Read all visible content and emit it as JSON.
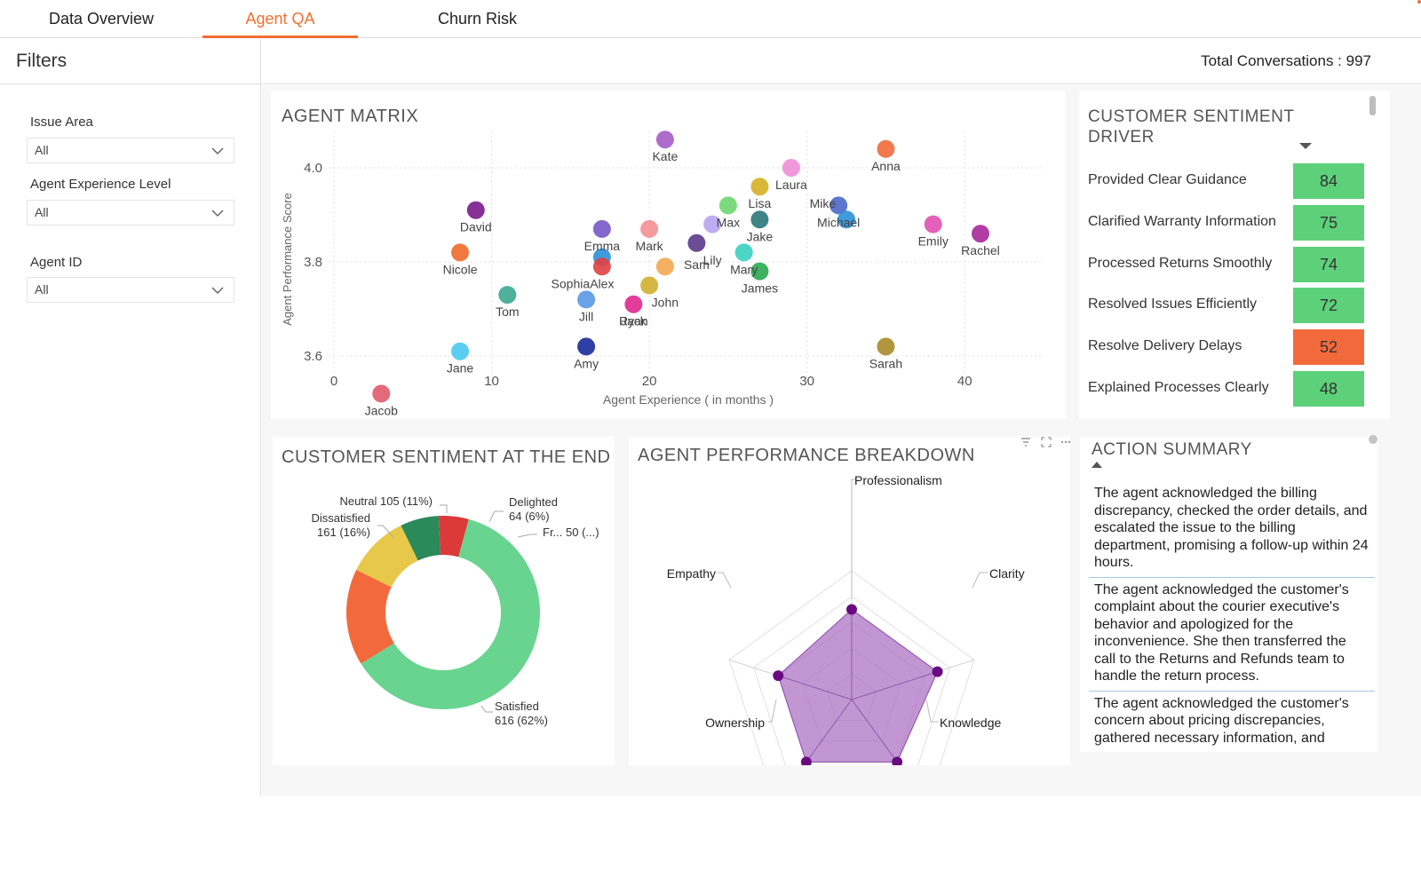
{
  "tabs": [
    {
      "label": "Data Overview",
      "active": false
    },
    {
      "label": "Agent QA",
      "active": true
    },
    {
      "label": "Churn Risk",
      "active": false
    }
  ],
  "accent_color": "#f07030",
  "sidebar": {
    "title": "Filters",
    "filters": [
      {
        "label": "Issue Area",
        "value": "All"
      },
      {
        "label": "Agent Experience Level",
        "value": "All"
      },
      {
        "label": "Agent ID",
        "value": "All"
      }
    ]
  },
  "header": {
    "total_conversations": "Total Conversations : 997"
  },
  "agent_matrix": {
    "title": "AGENT MATRIX",
    "chart_data": {
      "type": "scatter",
      "xlabel": "Agent Experience ( in months )",
      "ylabel": "Agent Performance Score",
      "xlim": [
        0,
        45
      ],
      "ylim": [
        3.5,
        4.1
      ],
      "xticks": [
        0,
        10,
        20,
        30,
        40
      ],
      "yticks": [
        3.6,
        3.8,
        4.0
      ],
      "grid": true,
      "points": [
        {
          "name": "Kate",
          "x": 21,
          "y": 4.06,
          "color": "#a45cc7"
        },
        {
          "name": "Anna",
          "x": 35,
          "y": 4.04,
          "color": "#f06a3a"
        },
        {
          "name": "Laura",
          "x": 29,
          "y": 4.0,
          "color": "#f08cd8"
        },
        {
          "name": "Mike",
          "x": 27,
          "y": 3.96,
          "color": "#d4b020"
        },
        {
          "name": "Lisa",
          "x": 25,
          "y": 3.92,
          "color": "#6ed66e"
        },
        {
          "name": "Michael",
          "x": 32,
          "y": 3.92,
          "color": "#4a68c8"
        },
        {
          "name": "Michael",
          "x": 32.5,
          "y": 3.89,
          "color": "#2a90d8"
        },
        {
          "name": "Max",
          "x": 24,
          "y": 3.88,
          "color": "#b8a4f0"
        },
        {
          "name": "Jake",
          "x": 27,
          "y": 3.89,
          "color": "#2a7878"
        },
        {
          "name": "David",
          "x": 9,
          "y": 3.91,
          "color": "#7a1a8a"
        },
        {
          "name": "Emily",
          "x": 38,
          "y": 3.88,
          "color": "#e050b0"
        },
        {
          "name": "Rachel",
          "x": 41,
          "y": 3.86,
          "color": "#a8289a"
        },
        {
          "name": "Emma",
          "x": 17,
          "y": 3.87,
          "color": "#7858c8"
        },
        {
          "name": "Mark",
          "x": 20,
          "y": 3.87,
          "color": "#f49090"
        },
        {
          "name": "Lily",
          "x": 23,
          "y": 3.84,
          "color": "#5a3a8a"
        },
        {
          "name": "Mary",
          "x": 26,
          "y": 3.82,
          "color": "#3ad0c0"
        },
        {
          "name": "Nicole",
          "x": 8,
          "y": 3.82,
          "color": "#f06a2a"
        },
        {
          "name": "Emma",
          "x": 17,
          "y": 3.81,
          "color": "#2a90d8"
        },
        {
          "name": "Alex",
          "x": 17,
          "y": 3.79,
          "color": "#e04040"
        },
        {
          "name": "Sam",
          "x": 21,
          "y": 3.79,
          "color": "#f4a850"
        },
        {
          "name": "James",
          "x": 27,
          "y": 3.78,
          "color": "#2aa850"
        },
        {
          "name": "John",
          "x": 20,
          "y": 3.75,
          "color": "#d0b030"
        },
        {
          "name": "Tom",
          "x": 11,
          "y": 3.73,
          "color": "#3aa890"
        },
        {
          "name": "Sophia",
          "x": 16,
          "y": 3.72,
          "color": "#5a98e8"
        },
        {
          "name": "Jack",
          "x": 19,
          "y": 3.71,
          "color": "#e02890"
        },
        {
          "name": "Amy",
          "x": 16,
          "y": 3.62,
          "color": "#1a2a9a"
        },
        {
          "name": "Sarah",
          "x": 35,
          "y": 3.62,
          "color": "#a88a2a"
        },
        {
          "name": "Jane",
          "x": 8,
          "y": 3.61,
          "color": "#48c8f0"
        },
        {
          "name": "Jacob",
          "x": 3,
          "y": 3.52,
          "color": "#e05a6a"
        }
      ],
      "labels": [
        {
          "text": "Kate",
          "x": 21,
          "y": 4.06
        },
        {
          "text": "Anna",
          "x": 35,
          "y": 4.04
        },
        {
          "text": "Laura",
          "x": 29,
          "y": 4.0
        },
        {
          "text": "Mike",
          "x": 31,
          "y": 3.96
        },
        {
          "text": "Lisa",
          "x": 27,
          "y": 3.96
        },
        {
          "text": "Max",
          "x": 25,
          "y": 3.92
        },
        {
          "text": "Jake",
          "x": 27,
          "y": 3.89
        },
        {
          "text": "Michael",
          "x": 32,
          "y": 3.92
        },
        {
          "text": "David",
          "x": 9,
          "y": 3.91
        },
        {
          "text": "Emily",
          "x": 38,
          "y": 3.88
        },
        {
          "text": "Rachel",
          "x": 41,
          "y": 3.86
        },
        {
          "text": "Emma",
          "x": 17,
          "y": 3.87
        },
        {
          "text": "Mark",
          "x": 20,
          "y": 3.87
        },
        {
          "text": "Lily",
          "x": 24,
          "y": 3.84
        },
        {
          "text": "Sam",
          "x": 23,
          "y": 3.83
        },
        {
          "text": "Mary",
          "x": 26,
          "y": 3.82
        },
        {
          "text": "Nicole",
          "x": 8,
          "y": 3.82
        },
        {
          "text": "Alex",
          "x": 17,
          "y": 3.79
        },
        {
          "text": "Sophia",
          "x": 15,
          "y": 3.79
        },
        {
          "text": "John",
          "x": 21,
          "y": 3.75
        },
        {
          "text": "James",
          "x": 27,
          "y": 3.78
        },
        {
          "text": "Tom",
          "x": 11,
          "y": 3.73
        },
        {
          "text": "Jack",
          "x": 19,
          "y": 3.71
        },
        {
          "text": "Jill",
          "x": 16,
          "y": 3.72
        },
        {
          "text": "Ryan",
          "x": 19,
          "y": 3.71
        },
        {
          "text": "Amy",
          "x": 16,
          "y": 3.62
        },
        {
          "text": "Sarah",
          "x": 35,
          "y": 3.62
        },
        {
          "text": "Jane",
          "x": 8,
          "y": 3.61
        },
        {
          "text": "Jacob",
          "x": 3,
          "y": 3.52
        }
      ]
    }
  },
  "sentiment_driver": {
    "title_line1": "CUSTOMER SENTIMENT",
    "title_line2": "DRIVER",
    "rows": [
      {
        "label": "Provided Clear Guidance",
        "value": "84",
        "color": "#5dd07a"
      },
      {
        "label": "Clarified Warranty Information",
        "value": "75",
        "color": "#5dd07a"
      },
      {
        "label": "Processed Returns Smoothly",
        "value": "74",
        "color": "#5dd07a"
      },
      {
        "label": "Resolved Issues Efficiently",
        "value": "72",
        "color": "#5dd07a"
      },
      {
        "label": "Resolve Delivery Delays",
        "value": "52",
        "color": "#f26a3c"
      },
      {
        "label": "Explained Processes Clearly",
        "value": "48",
        "color": "#5dd07a"
      }
    ]
  },
  "sentiment_end": {
    "title": "CUSTOMER SENTIMENT AT THE END",
    "chart_data": {
      "type": "pie",
      "donut": true,
      "slices": [
        {
          "label": "Satisfied",
          "value": 616,
          "pct": "62%",
          "color": "#68d490",
          "text_line1": "Satisfied",
          "text_line2": "616 (62%)"
        },
        {
          "label": "Dissatisfied",
          "value": 161,
          "pct": "16%",
          "color": "#f26a3c",
          "text_line1": "Dissatisfied",
          "text_line2": "161 (16%)"
        },
        {
          "label": "Neutral",
          "value": 105,
          "pct": "11%",
          "color": "#e8c84a",
          "text_line1": "Neutral 105 (11%)",
          "text_line2": ""
        },
        {
          "label": "Delighted",
          "value": 64,
          "pct": "6%",
          "color": "#2a8a5a",
          "text_line1": "Delighted",
          "text_line2": "64 (6%)"
        },
        {
          "label": "Fr...",
          "value": 50,
          "pct": "(...)",
          "color": "#dc3a3a",
          "text_line1": "Fr... 50 (...)",
          "text_line2": ""
        }
      ]
    }
  },
  "performance": {
    "title": "AGENT PERFORMANCE BREAKDOWN",
    "chart_data": {
      "type": "radar",
      "axes": [
        "Professionalism",
        "Clarity",
        "Knowledge",
        "Ownership",
        "Empathy"
      ],
      "values": [
        0.7,
        0.7,
        0.6,
        0.6,
        0.6
      ],
      "max": 1,
      "fill_color": "#a86ac0",
      "point_color": "#6a0a80"
    }
  },
  "action_summary": {
    "title": "ACTION SUMMARY",
    "items": [
      "The agent acknowledged the billing discrepancy, checked the order details, and escalated the issue to the billing department, promising a follow-up within 24 hours.",
      "The agent acknowledged the customer's complaint about the courier executive's behavior and apologized for the inconvenience. She then transferred the call to the Returns and Refunds team to handle the return process.",
      "The agent acknowledged the customer's concern about pricing discrepancies, gathered necessary information, and promised to investigate and follow up via email."
    ]
  }
}
